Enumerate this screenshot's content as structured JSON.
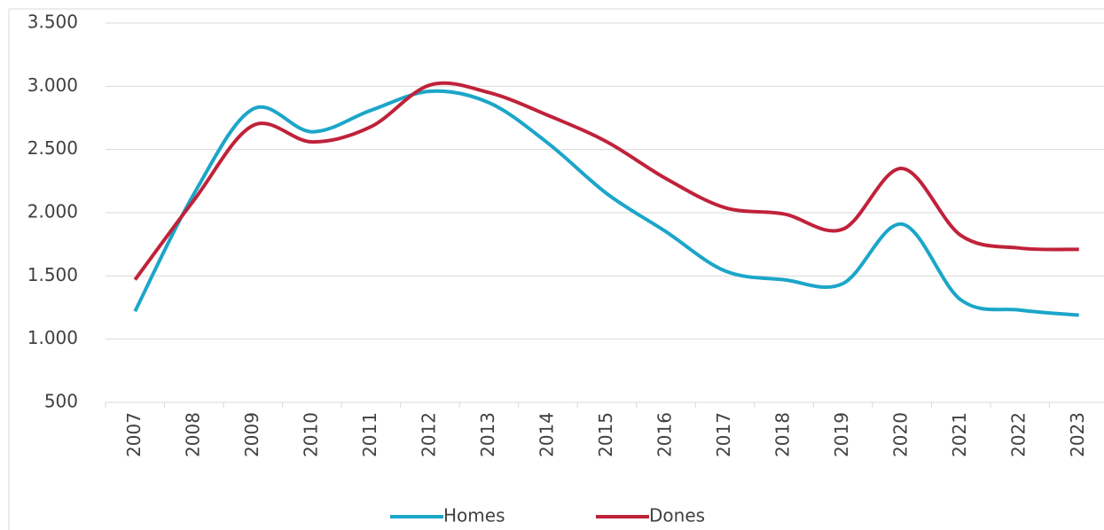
{
  "chart_data": {
    "type": "line",
    "categories": [
      "2007",
      "2008",
      "2009",
      "2010",
      "2011",
      "2012",
      "2013",
      "2014",
      "2015",
      "2016",
      "2017",
      "2018",
      "2019",
      "2020",
      "2021",
      "2022",
      "2023"
    ],
    "series": [
      {
        "name": "Homes",
        "color": "#1ba6c9",
        "values": [
          1220,
          2150,
          2820,
          2640,
          2810,
          2960,
          2870,
          2550,
          2150,
          1850,
          1540,
          1470,
          1440,
          1910,
          1310,
          1230,
          1190
        ]
      },
      {
        "name": "Dones",
        "color": "#c0223a",
        "values": [
          1470,
          2100,
          2690,
          2560,
          2680,
          3010,
          2950,
          2770,
          2560,
          2270,
          2040,
          1990,
          1870,
          2350,
          1820,
          1720,
          1710
        ]
      }
    ],
    "ylim": [
      500,
      3500
    ],
    "yticks": [
      500,
      {
        "value": 1000,
        "label": "1.000"
      },
      {
        "value": 1500,
        "label": "1.500"
      },
      {
        "value": 2000,
        "label": "2.000"
      },
      {
        "value": 2500,
        "label": "2.500"
      },
      {
        "value": 3000,
        "label": "3.000"
      },
      {
        "value": 3500,
        "label": "3.500"
      }
    ],
    "grid": true,
    "legend": "bottom"
  }
}
